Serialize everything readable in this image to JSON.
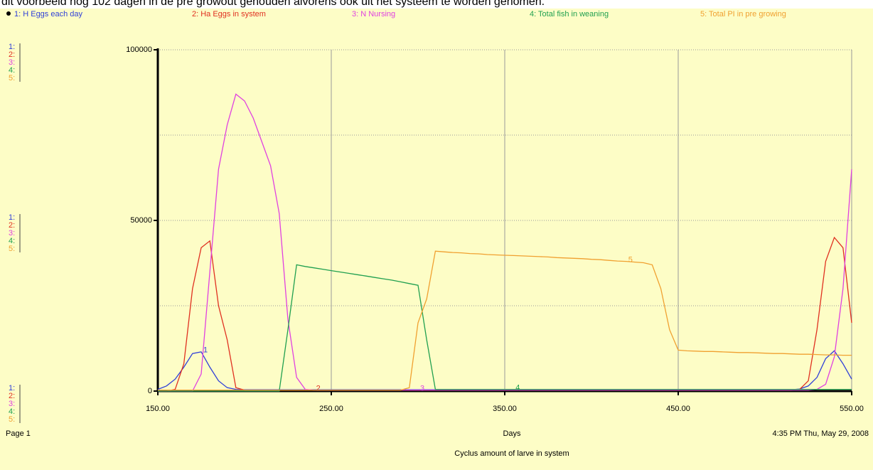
{
  "caption_above": "dit voorbeeld nog 102 dagen in de pre growout gehouden alvorens ook uit het systeem te worden genomen.",
  "chart_data": {
    "type": "line",
    "subtitle": "Cyclus amount of larve in system",
    "x_label": "Days",
    "page_label": "Page 1",
    "timestamp": "4:35 PM  Thu, May 29, 2008",
    "axis_keys": [
      "1:",
      "2:",
      "3:",
      "4:",
      "5:"
    ],
    "xlim": [
      150,
      550
    ],
    "ylim": [
      0,
      100000
    ],
    "xticks": [
      {
        "value": 150,
        "label": "150.00"
      },
      {
        "value": 250,
        "label": "250.00"
      },
      {
        "value": 350,
        "label": "350.00"
      },
      {
        "value": 450,
        "label": "450.00"
      },
      {
        "value": 550,
        "label": "550.00"
      }
    ],
    "yticks": [
      0,
      50000,
      100000
    ],
    "yminor": [
      25000,
      75000
    ],
    "grid": true,
    "x": [
      150,
      155,
      160,
      165,
      170,
      175,
      180,
      185,
      190,
      195,
      200,
      205,
      210,
      215,
      220,
      225,
      230,
      235,
      240,
      245,
      250,
      255,
      260,
      265,
      270,
      275,
      280,
      285,
      290,
      295,
      300,
      305,
      310,
      315,
      320,
      325,
      330,
      335,
      340,
      345,
      350,
      355,
      360,
      365,
      370,
      375,
      380,
      385,
      390,
      395,
      400,
      405,
      410,
      415,
      420,
      425,
      430,
      435,
      440,
      445,
      450,
      455,
      460,
      465,
      470,
      475,
      480,
      485,
      490,
      495,
      500,
      505,
      510,
      515,
      520,
      525,
      530,
      535,
      540,
      545,
      550
    ],
    "series": [
      {
        "name": "1: H Eggs each day",
        "tag": "1",
        "color": "#2f3fd8",
        "values": [
          500,
          1500,
          3500,
          7000,
          11000,
          11500,
          7000,
          3000,
          1000,
          500,
          400,
          400,
          400,
          400,
          400,
          400,
          400,
          400,
          400,
          400,
          400,
          400,
          400,
          400,
          400,
          400,
          400,
          400,
          400,
          400,
          400,
          400,
          400,
          400,
          400,
          400,
          400,
          400,
          400,
          400,
          400,
          400,
          400,
          400,
          400,
          400,
          400,
          400,
          400,
          400,
          400,
          400,
          400,
          400,
          400,
          400,
          400,
          400,
          400,
          400,
          400,
          400,
          400,
          400,
          400,
          400,
          400,
          400,
          400,
          400,
          400,
          400,
          400,
          400,
          600,
          1500,
          4000,
          9500,
          11800,
          8000,
          3500
        ]
      },
      {
        "name": "2: Ha Eggs in  system",
        "tag": "2",
        "color": "#e03020",
        "values": [
          0,
          0,
          500,
          8000,
          30000,
          42000,
          44000,
          25000,
          15000,
          1000,
          300,
          300,
          300,
          300,
          300,
          300,
          300,
          300,
          300,
          300,
          300,
          300,
          300,
          300,
          300,
          300,
          300,
          300,
          300,
          300,
          300,
          300,
          300,
          300,
          300,
          300,
          300,
          300,
          300,
          300,
          300,
          300,
          300,
          300,
          300,
          300,
          300,
          300,
          300,
          300,
          300,
          300,
          300,
          300,
          300,
          300,
          300,
          300,
          300,
          300,
          300,
          300,
          300,
          300,
          300,
          300,
          300,
          300,
          300,
          300,
          300,
          300,
          300,
          300,
          500,
          3000,
          18000,
          38000,
          45000,
          42000,
          20000
        ]
      },
      {
        "name": "3: N Nursing",
        "tag": "3",
        "color": "#e040e0",
        "values": [
          0,
          0,
          0,
          0,
          0,
          5000,
          35000,
          65000,
          78000,
          87000,
          85000,
          80000,
          73000,
          66000,
          52000,
          21000,
          4000,
          500,
          300,
          300,
          300,
          300,
          300,
          300,
          300,
          300,
          300,
          300,
          300,
          300,
          300,
          300,
          300,
          300,
          300,
          300,
          300,
          300,
          300,
          300,
          300,
          300,
          300,
          300,
          300,
          300,
          300,
          300,
          300,
          300,
          300,
          300,
          300,
          300,
          300,
          300,
          300,
          300,
          300,
          300,
          300,
          300,
          300,
          300,
          300,
          300,
          300,
          300,
          300,
          300,
          300,
          300,
          300,
          300,
          300,
          300,
          500,
          2000,
          10000,
          30000,
          65000
        ]
      },
      {
        "name": "4: Total fish in weaning",
        "tag": "4",
        "color": "#20a050",
        "values": [
          0,
          0,
          0,
          0,
          0,
          0,
          0,
          0,
          0,
          0,
          0,
          0,
          0,
          0,
          0,
          18000,
          37000,
          36500,
          36100,
          35700,
          35300,
          34900,
          34500,
          34100,
          33700,
          33300,
          32900,
          32500,
          32000,
          31500,
          31000,
          15000,
          500,
          500,
          500,
          500,
          500,
          500,
          500,
          500,
          500,
          500,
          500,
          500,
          500,
          500,
          500,
          500,
          500,
          500,
          500,
          500,
          500,
          500,
          500,
          500,
          500,
          500,
          500,
          500,
          500,
          500,
          500,
          500,
          500,
          500,
          500,
          500,
          500,
          500,
          500,
          500,
          500,
          500,
          500,
          500,
          500,
          500,
          500,
          500,
          500
        ]
      },
      {
        "name": "5: Total PI in pre growing",
        "tag": "5",
        "color": "#f0a030",
        "values": [
          300,
          300,
          300,
          300,
          300,
          300,
          300,
          300,
          300,
          300,
          300,
          300,
          300,
          300,
          300,
          300,
          300,
          300,
          300,
          300,
          300,
          300,
          300,
          300,
          300,
          300,
          300,
          300,
          300,
          1000,
          20000,
          27000,
          41000,
          40800,
          40600,
          40500,
          40300,
          40200,
          40000,
          39900,
          39800,
          39700,
          39600,
          39500,
          39400,
          39300,
          39100,
          39000,
          38900,
          38800,
          38600,
          38500,
          38300,
          38100,
          38000,
          37800,
          37600,
          37000,
          30000,
          18000,
          12000,
          11800,
          11700,
          11600,
          11600,
          11500,
          11400,
          11300,
          11300,
          11200,
          11100,
          11000,
          11000,
          10900,
          10800,
          10800,
          10700,
          10600,
          10600,
          10500,
          10500
        ]
      }
    ]
  }
}
